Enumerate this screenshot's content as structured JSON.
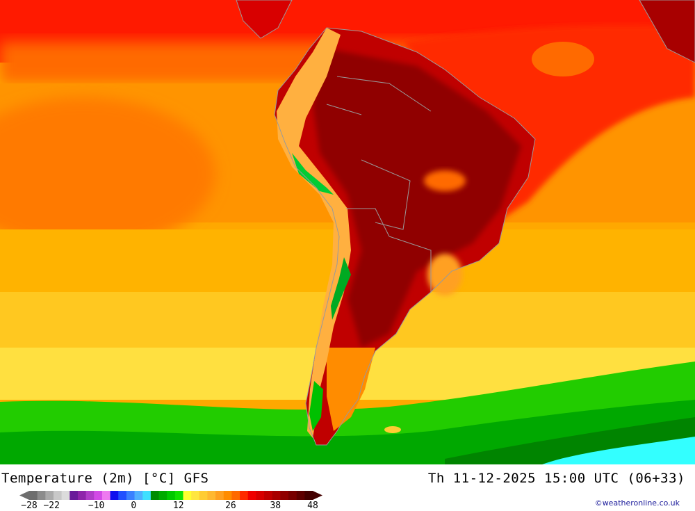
{
  "map": {
    "title": "Temperature (2m) [°C] GFS",
    "valid_time": "Th 11-12-2025 15:00 UTC (06+33)",
    "credit": "©weatheronline.co.uk",
    "colors": {
      "ocean_far": "#ff7a00",
      "ocean_mid": "#ffa800",
      "ocean_cool": "#ffd000",
      "tropics": "#ff1a00",
      "land_hot": "#c00000",
      "land_very_hot": "#8f0000",
      "andes": "#ffb040",
      "andes_cool": "#00cc33",
      "south_ocean_green": "#22cc00",
      "south_ocean_dark": "#008f00",
      "cold_cyan": "#33ffff"
    }
  },
  "legend": {
    "unit": "°C",
    "colors": [
      "#6e6e6e",
      "#8c8c8c",
      "#aaaaaa",
      "#c8c8c8",
      "#dcdcdc",
      "#6a1b9a",
      "#8e24aa",
      "#b03cc8",
      "#d24ae6",
      "#ee7af0",
      "#1010ee",
      "#2050ff",
      "#3a80ff",
      "#50b0ff",
      "#40e0ff",
      "#008c00",
      "#00aa00",
      "#00c800",
      "#10e000",
      "#ffff30",
      "#ffe640",
      "#ffcc33",
      "#ffb830",
      "#ffa020",
      "#ff8c00",
      "#ff6a00",
      "#ff2a00",
      "#f00000",
      "#d80000",
      "#c00000",
      "#a80000",
      "#900000",
      "#780000",
      "#5e0000",
      "#440000"
    ],
    "ticks": [
      "-28",
      "-22",
      "-10",
      "0",
      "12",
      "26",
      "38",
      "48"
    ],
    "tick_values": [
      -28,
      -22,
      -10,
      0,
      12,
      26,
      38,
      48
    ],
    "min": -28,
    "max": 48
  }
}
